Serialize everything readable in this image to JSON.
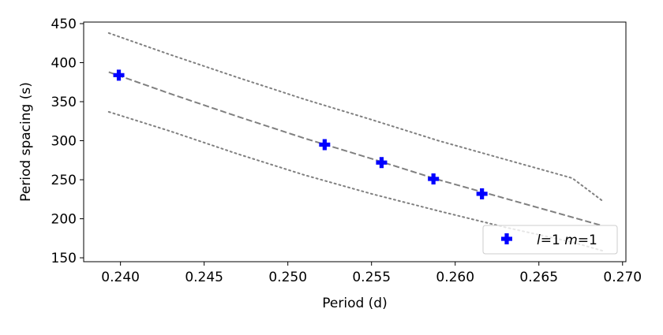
{
  "chart_data": {
    "type": "scatter",
    "xlabel": "Period (d)",
    "ylabel": "Period spacing (s)",
    "xlim": [
      0.2378,
      0.2702
    ],
    "ylim": [
      145,
      452
    ],
    "x_ticks": [
      0.24,
      0.245,
      0.25,
      0.255,
      0.26,
      0.265,
      0.27
    ],
    "x_tick_labels": [
      "0.240",
      "0.245",
      "0.250",
      "0.255",
      "0.260",
      "0.265",
      "0.270"
    ],
    "y_ticks": [
      150,
      200,
      250,
      300,
      350,
      400,
      450
    ],
    "y_tick_labels": [
      "150",
      "200",
      "250",
      "300",
      "350",
      "400",
      "450"
    ],
    "grid": false,
    "legend_position": "lower right",
    "series": [
      {
        "name": "l=1 m=1",
        "legend_parts": [
          {
            "text": "l",
            "italic": true
          },
          {
            "text": "=1 ",
            "italic": false
          },
          {
            "text": "m",
            "italic": true
          },
          {
            "text": "=1",
            "italic": false
          }
        ],
        "marker": "plus-filled",
        "color": "#0000ff",
        "x": [
          0.2399,
          0.2522,
          0.2556,
          0.2587,
          0.2616
        ],
        "y": [
          384,
          295,
          272,
          251,
          232
        ]
      }
    ],
    "lines": [
      {
        "style": "dashed",
        "color": "#808080",
        "x": [
          0.2393,
          0.243,
          0.247,
          0.251,
          0.255,
          0.259,
          0.263,
          0.267,
          0.2688
        ],
        "y": [
          388,
          360,
          331,
          303,
          277,
          250,
          226,
          202,
          191
        ]
      },
      {
        "style": "dotted",
        "color": "#808080",
        "x": [
          0.2393,
          0.243,
          0.247,
          0.251,
          0.255,
          0.259,
          0.263,
          0.267,
          0.2688
        ],
        "y": [
          438,
          410,
          381,
          353,
          327,
          300,
          276,
          252,
          223
        ]
      },
      {
        "style": "dotted",
        "color": "#808080",
        "x": [
          0.2393,
          0.243,
          0.247,
          0.251,
          0.255,
          0.259,
          0.263,
          0.267,
          0.2688
        ],
        "y": [
          337,
          312,
          283,
          256,
          232,
          210,
          189,
          170,
          159
        ]
      }
    ]
  }
}
